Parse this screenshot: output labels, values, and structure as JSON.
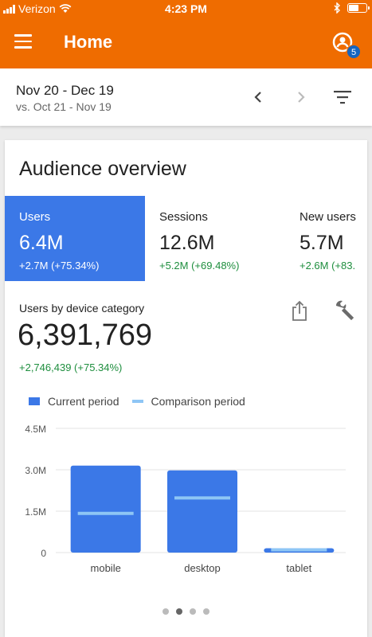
{
  "status_bar": {
    "carrier": "Verizon",
    "time": "4:23 PM",
    "battery_level": 0.6
  },
  "app_bar": {
    "title": "Home",
    "badge_count": "5",
    "color": "#ef6c00",
    "icons": [
      "menu-icon",
      "account-icon"
    ]
  },
  "date_bar": {
    "range": "Nov 20 - Dec 19",
    "compare": "vs. Oct 21 - Nov 19",
    "icons": [
      "chevron-left-icon",
      "chevron-right-icon",
      "filter-icon"
    ]
  },
  "card": {
    "title": "Audience overview",
    "metrics": [
      {
        "label": "Users",
        "value": "6.4M",
        "delta": "+2.7M (+75.34%)"
      },
      {
        "label": "Sessions",
        "value": "12.6M",
        "delta": "+5.2M (+69.48%)"
      },
      {
        "label": "New users",
        "value": "5.7M",
        "delta": "+2.6M (+83."
      }
    ],
    "section_label": "Users by device category",
    "big_number": "6,391,769",
    "big_delta": "+2,746,439 (+75.34%)",
    "legend": {
      "current": "Current period",
      "comparison": "Comparison period"
    },
    "accent": "#3b78e7",
    "comparison_color": "#8ec6f5",
    "delta_color": "#1e8e3e"
  },
  "chart_data": {
    "type": "bar",
    "categories": [
      "mobile",
      "desktop",
      "tablet"
    ],
    "y_tick_labels": [
      "4.5M",
      "3.0M",
      "1.5M",
      "0"
    ],
    "y_ticks": [
      4500000,
      3000000,
      1500000,
      0
    ],
    "ylim": [
      0,
      4500000
    ],
    "grid": true,
    "legend_position": "top-left",
    "series": [
      {
        "name": "Current period",
        "values": [
          3150000,
          2980000,
          160000
        ]
      },
      {
        "name": "Comparison period",
        "values": [
          1420000,
          1980000,
          100000
        ]
      }
    ]
  },
  "pager": {
    "count": 4,
    "active_index": 1
  }
}
